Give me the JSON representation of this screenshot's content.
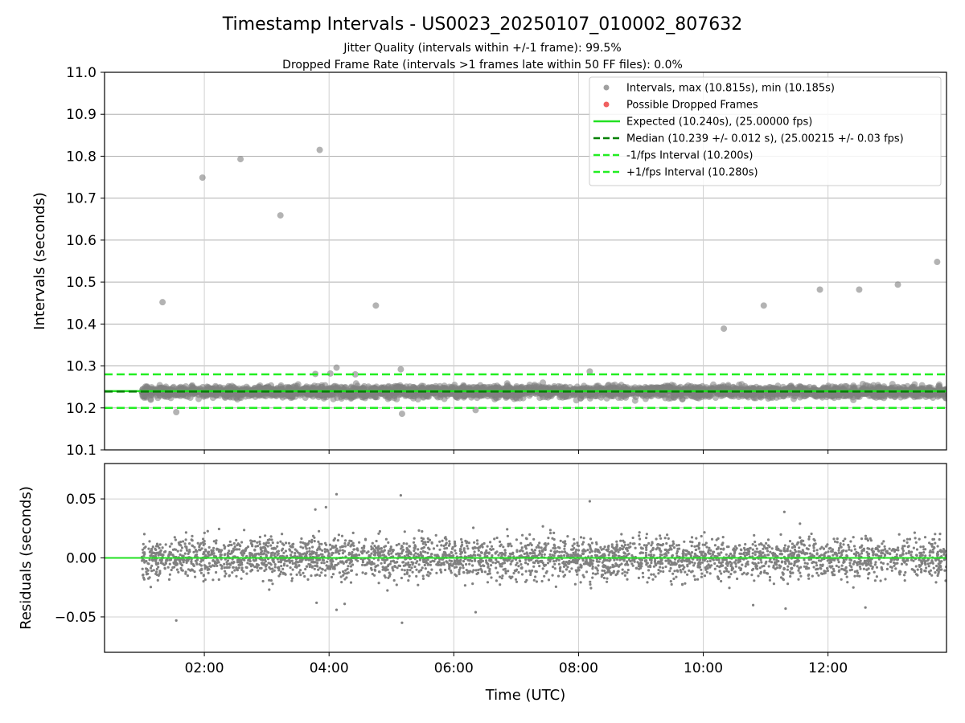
{
  "title": "Timestamp Intervals - US0023_20250107_010002_807632",
  "subtitle_lines": [
    "Jitter Quality (intervals within +/-1 frame): 99.5%",
    "Dropped Frame Rate (intervals >1 frames late within 50 FF files): 0.0%"
  ],
  "colors": {
    "points": "#808080",
    "dropped": "#f06060",
    "expected": "#22e022",
    "median": "#008000",
    "interval": "#22ee22",
    "grid": "#b0b0b0"
  },
  "chart_data": [
    {
      "type": "scatter",
      "ylabel": "Intervals (seconds)",
      "xlabel": "",
      "x_unit": "hours (UTC)",
      "xlim": [
        0.4,
        13.9
      ],
      "ylim": [
        10.1,
        11.0
      ],
      "yticks": [
        "10.1",
        "10.2",
        "10.3",
        "10.4",
        "10.5",
        "10.6",
        "10.7",
        "10.8",
        "10.9",
        "11.0"
      ],
      "grid": true,
      "legend_position": "top-right",
      "legend": [
        {
          "label": "Intervals, max (10.815s), min (10.185s)",
          "kind": "point",
          "color": "#a0a0a0"
        },
        {
          "label": "Possible Dropped Frames",
          "kind": "point",
          "color": "#f06060"
        },
        {
          "label": "Expected (10.240s), (25.00000 fps)",
          "kind": "solid",
          "color": "#22e022"
        },
        {
          "label": "Median (10.239 +/- 0.012 s), (25.00215 +/- 0.03 fps)",
          "kind": "dashed",
          "color": "#008000"
        },
        {
          "label": "-1/fps Interval (10.200s)",
          "kind": "dashed",
          "color": "#22ee22"
        },
        {
          "label": "+1/fps Interval (10.280s)",
          "kind": "dashed",
          "color": "#22ee22"
        }
      ],
      "reference_lines": {
        "expected": 10.24,
        "median": 10.239,
        "lower": 10.2,
        "upper": 10.28
      },
      "band": {
        "x_start": 1.0,
        "x_end": 13.9,
        "center": 10.239,
        "spread": 0.012
      },
      "outliers": [
        {
          "x": 1.33,
          "y": 10.452
        },
        {
          "x": 1.97,
          "y": 10.749
        },
        {
          "x": 2.58,
          "y": 10.793
        },
        {
          "x": 3.22,
          "y": 10.659
        },
        {
          "x": 3.85,
          "y": 10.815
        },
        {
          "x": 4.75,
          "y": 10.444
        },
        {
          "x": 10.33,
          "y": 10.389
        },
        {
          "x": 10.97,
          "y": 10.444
        },
        {
          "x": 11.87,
          "y": 10.482
        },
        {
          "x": 12.5,
          "y": 10.482
        },
        {
          "x": 13.12,
          "y": 10.494
        },
        {
          "x": 13.75,
          "y": 10.548
        },
        {
          "x": 1.55,
          "y": 10.19
        },
        {
          "x": 4.12,
          "y": 10.296
        },
        {
          "x": 5.15,
          "y": 10.292
        },
        {
          "x": 5.17,
          "y": 10.186
        },
        {
          "x": 6.35,
          "y": 10.195
        },
        {
          "x": 8.18,
          "y": 10.287
        },
        {
          "x": 3.78,
          "y": 10.281
        },
        {
          "x": 4.02,
          "y": 10.282
        },
        {
          "x": 4.42,
          "y": 10.28
        }
      ]
    },
    {
      "type": "scatter",
      "ylabel": "Residuals (seconds)",
      "xlabel": "Time (UTC)",
      "xlim": [
        0.4,
        13.9
      ],
      "ylim": [
        -0.08,
        0.08
      ],
      "yticks": [
        {
          "value": -0.05,
          "label": "−0.05"
        },
        {
          "value": 0.0,
          "label": "0.00"
        },
        {
          "value": 0.05,
          "label": "0.05"
        }
      ],
      "xticks": [
        {
          "value": 2,
          "label": "02:00"
        },
        {
          "value": 4,
          "label": "04:00"
        },
        {
          "value": 6,
          "label": "06:00"
        },
        {
          "value": 8,
          "label": "08:00"
        },
        {
          "value": 10,
          "label": "10:00"
        },
        {
          "value": 12,
          "label": "12:00"
        }
      ],
      "grid": true,
      "zero_line": 0.0,
      "band": {
        "x_start": 1.0,
        "x_end": 13.9,
        "center": 0.0,
        "spread": 0.012
      },
      "outliers": [
        {
          "x": 4.12,
          "y": 0.054
        },
        {
          "x": 5.15,
          "y": 0.053
        },
        {
          "x": 8.18,
          "y": 0.048
        },
        {
          "x": 1.55,
          "y": -0.053
        },
        {
          "x": 5.17,
          "y": -0.055
        },
        {
          "x": 6.35,
          "y": -0.046
        },
        {
          "x": 3.95,
          "y": 0.043
        },
        {
          "x": 3.78,
          "y": 0.041
        },
        {
          "x": 11.3,
          "y": 0.039
        },
        {
          "x": 4.12,
          "y": -0.044
        },
        {
          "x": 10.8,
          "y": -0.04
        },
        {
          "x": 11.32,
          "y": -0.043
        },
        {
          "x": 12.6,
          "y": -0.042
        },
        {
          "x": 4.25,
          "y": -0.039
        },
        {
          "x": 3.8,
          "y": -0.038
        }
      ]
    }
  ]
}
